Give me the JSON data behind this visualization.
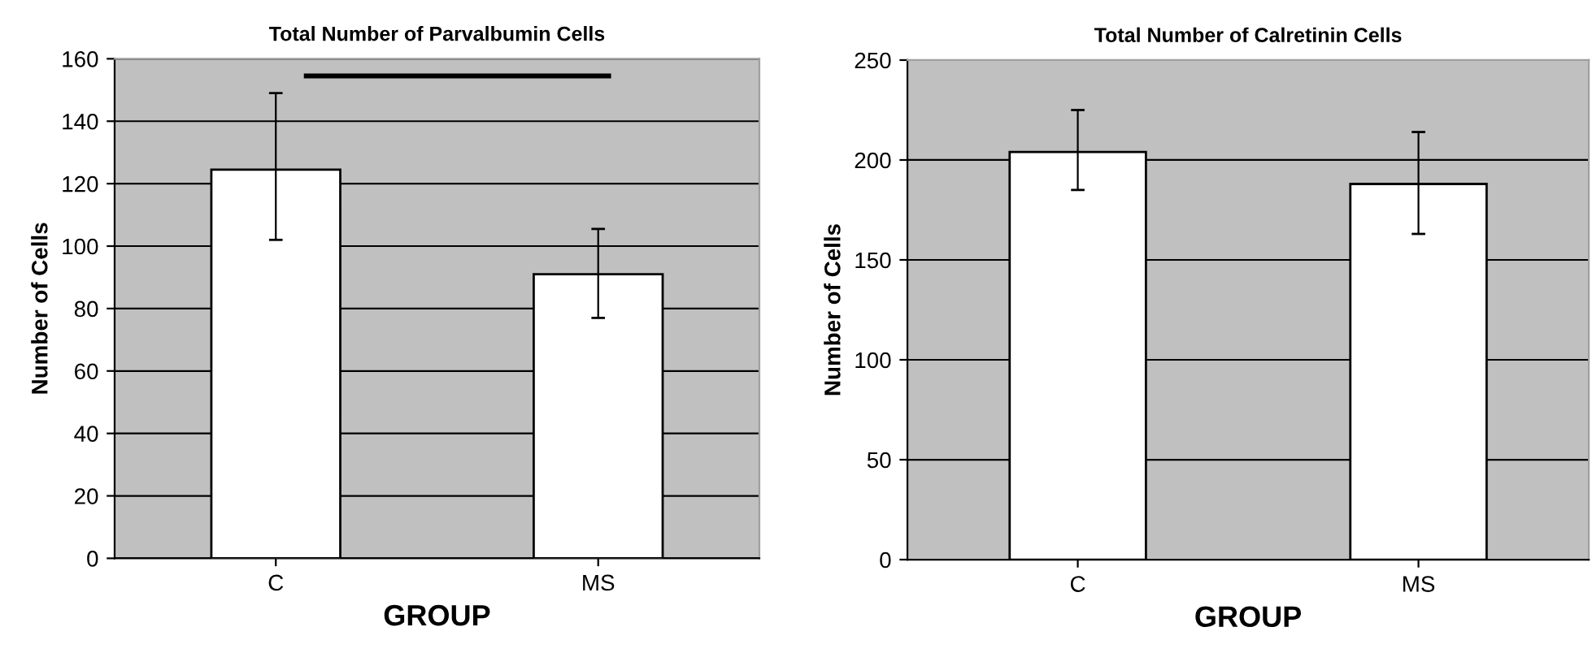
{
  "chart_data": [
    {
      "type": "bar",
      "title": "Total Number of Parvalbumin Cells",
      "xlabel": "GROUP",
      "ylabel": "Number of Cells",
      "categories": [
        "C",
        "MS"
      ],
      "values": [
        124.5,
        91
      ],
      "errors": [
        [
          102,
          149
        ],
        [
          77,
          105.5
        ]
      ],
      "color": "#ffffff",
      "ylim": [
        0,
        160
      ],
      "yticks": [
        0,
        20,
        40,
        60,
        80,
        100,
        120,
        140,
        160
      ],
      "grid": "y",
      "legend": false
    },
    {
      "type": "bar",
      "title": "Total Number of Calretinin Cells",
      "xlabel": "GROUP",
      "ylabel": "Number of Cells",
      "categories": [
        "C",
        "MS"
      ],
      "values": [
        204,
        188
      ],
      "errors": [
        [
          185,
          225
        ],
        [
          163,
          214
        ]
      ],
      "color": "#ffffff",
      "ylim": [
        0,
        250
      ],
      "yticks": [
        0,
        50,
        100,
        150,
        200,
        250
      ],
      "grid": "y",
      "legend": false
    }
  ]
}
